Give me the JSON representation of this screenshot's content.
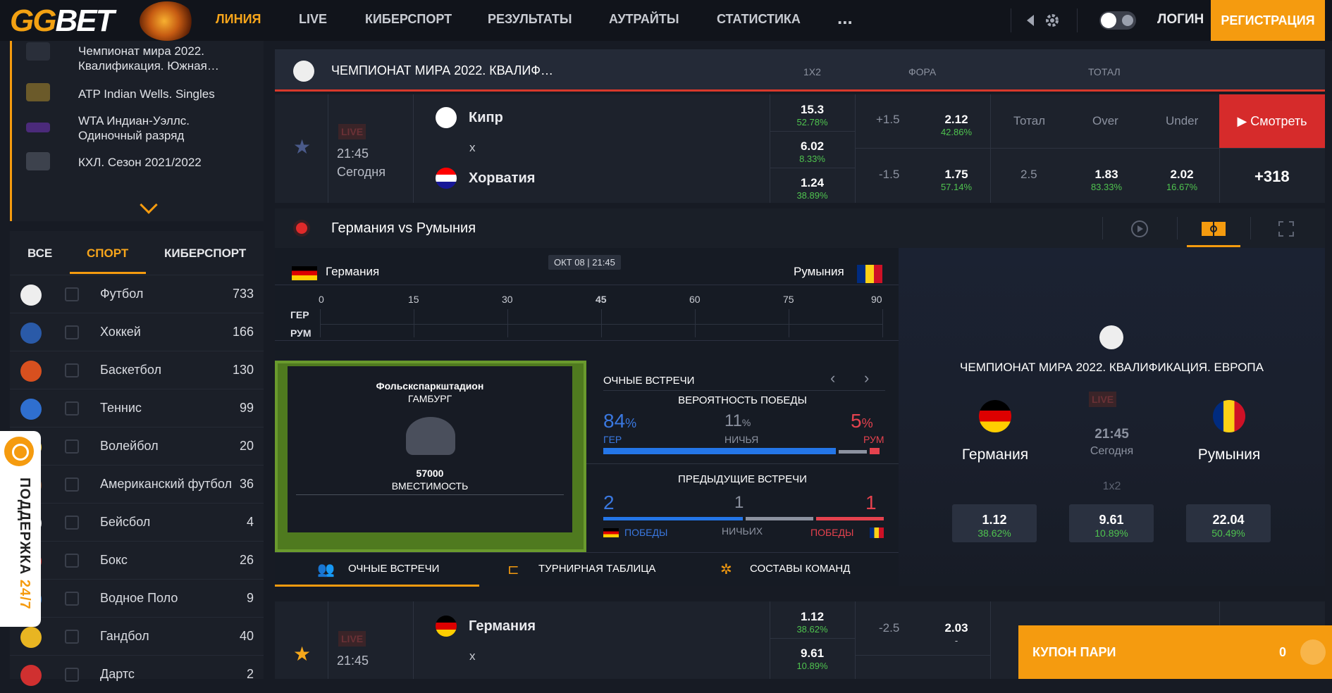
{
  "header": {
    "logo": {
      "gg": "GG",
      "bet": "BET"
    },
    "nav": [
      "ЛИНИЯ",
      "LIVE",
      "КИБЕРСПОРТ",
      "РЕЗУЛЬТАТЫ",
      "АУТРАЙТЫ",
      "СТАТИСТИКА",
      "..."
    ],
    "login": "ЛОГИН",
    "register": "РЕГИСТРАЦИЯ"
  },
  "leagues": [
    "Чемпионат мира 2022. Квалификация. Южная…",
    "ATP Indian Wells. Singles",
    "WTA Индиан-Уэллс. Одиночный разряд",
    "КХЛ. Сезон 2021/2022"
  ],
  "tabs": [
    "ВСЕ",
    "СПОРТ",
    "КИБЕРСПОРТ"
  ],
  "sports": [
    {
      "name": "Футбол",
      "count": "733"
    },
    {
      "name": "Хоккей",
      "count": "166"
    },
    {
      "name": "Баскетбол",
      "count": "130"
    },
    {
      "name": "Теннис",
      "count": "99"
    },
    {
      "name": "Волейбол",
      "count": "20"
    },
    {
      "name": "Американский футбол",
      "count": "36"
    },
    {
      "name": "Бейсбол",
      "count": "4"
    },
    {
      "name": "Бокс",
      "count": "26"
    },
    {
      "name": "Водное Поло",
      "count": "9"
    },
    {
      "name": "Гандбол",
      "count": "40"
    },
    {
      "name": "Дартс",
      "count": "2"
    }
  ],
  "support": {
    "text": "ПОДДЕРЖКА ",
    "hours": "24/7"
  },
  "league_header": {
    "title": "ЧЕМПИОНАТ МИРА 2022. КВАЛИФ…",
    "cols": [
      "1X2",
      "ФОРА",
      "ТОТАЛ"
    ]
  },
  "match1": {
    "live": "LIVE",
    "time": "21:45",
    "day": "Сегодня",
    "team1": "Кипр",
    "x": "x",
    "team2": "Хорватия",
    "odds": [
      {
        "v": "15.3",
        "p": "52.78%"
      },
      {
        "v": "6.02",
        "p": "8.33%"
      },
      {
        "v": "1.24",
        "p": "38.89%"
      }
    ],
    "fora": [
      {
        "h": "+1.5",
        "v": "2.12",
        "p": "42.86%"
      },
      {
        "h": "-1.5",
        "v": "1.75",
        "p": "57.14%"
      }
    ],
    "total_hdr": [
      "Тотал",
      "Over",
      "Under"
    ],
    "total": {
      "t": "2.5",
      "over": "1.83",
      "over_p": "83.33%",
      "under": "2.02",
      "under_p": "16.67%"
    },
    "watch": "Смотреть",
    "more": "+318"
  },
  "live_panel": {
    "title": "Германия vs Румыния",
    "team1": "Германия",
    "team2": "Румыния",
    "date": "ОКТ 08 | 21:45",
    "ticks": [
      "0",
      "15",
      "30",
      "45",
      "60",
      "75",
      "90"
    ],
    "tl_team1": "ГЕР",
    "tl_team2": "РУМ",
    "stadium": "Фольскспаркштадион",
    "city": "ГАМБУРГ",
    "capacity": "57000",
    "capacity_lbl": "ВМЕСТИМОСТЬ",
    "h2h_title": "ОЧНЫЕ ВСТРЕЧИ",
    "prob_title": "ВЕРОЯТНОСТЬ ПОБЕДЫ",
    "prob": {
      "home": "84",
      "draw": "11",
      "away": "5",
      "pct": "%",
      "home_lbl": "ГЕР",
      "draw_lbl": "НИЧЬЯ",
      "away_lbl": "РУМ"
    },
    "prev_title": "ПРЕДЫДУЩИЕ ВСТРЕЧИ",
    "prev": {
      "home": "2",
      "draw": "1",
      "away": "1",
      "home_lbl": "ПОБЕДЫ",
      "draw_lbl": "НИЧЬИХ",
      "away_lbl": "ПОБЕДЫ"
    },
    "tabs": [
      "ОЧНЫЕ ВСТРЕЧИ",
      "ТУРНИРНАЯ ТАБЛИЦА",
      "СОСТАВЫ КОМАНД"
    ],
    "right": {
      "league": "ЧЕМПИОНАТ МИРА 2022. КВАЛИФИКАЦИЯ. ЕВРОПА",
      "live": "LIVE",
      "time": "21:45",
      "day": "Сегодня",
      "market": "1x2",
      "odds": [
        {
          "v": "1.12",
          "p": "38.62%"
        },
        {
          "v": "9.61",
          "p": "10.89%"
        },
        {
          "v": "22.04",
          "p": "50.49%"
        }
      ]
    }
  },
  "match2": {
    "live": "LIVE",
    "time": "21:45",
    "team1": "Германия",
    "x": "x",
    "odds": [
      {
        "v": "1.12",
        "p": "38.62%"
      },
      {
        "v": "9.61",
        "p": "10.89%"
      }
    ],
    "fora": {
      "h": "-2.5",
      "v": "2.03",
      "p": "-"
    }
  },
  "coupon": {
    "label": "КУПОН ПАРИ",
    "count": "0"
  },
  "colors": {
    "accent": "#f59b0f",
    "live_red": "#d62b2b",
    "pct_green": "#4fc34f",
    "blue": "#3a78e0"
  }
}
